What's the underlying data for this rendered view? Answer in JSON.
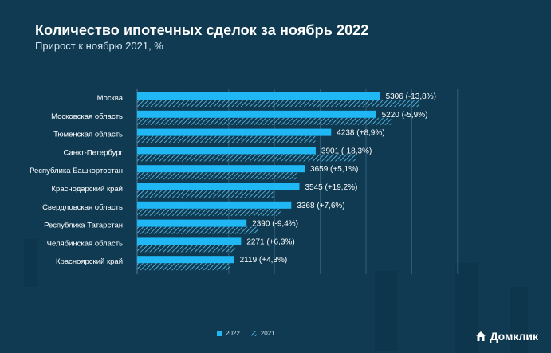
{
  "title": "Количество ипотечных сделок за ноябрь 2022",
  "subtitle": "Прирост к ноябрю 2021, %",
  "legend": {
    "current": "2022",
    "previous": "2021"
  },
  "brand": {
    "name": "Домклик"
  },
  "colors": {
    "bar_2022": "#1fb8f5",
    "bar_2021": "#5fc6f2",
    "background": "#0f3a52"
  },
  "chart_data": {
    "type": "bar",
    "orientation": "horizontal",
    "categories": [
      "Москва",
      "Московская область",
      "Тюменская область",
      "Санкт-Петербург",
      "Республика Башкортостан",
      "Краснодарский край",
      "Свердловская область",
      "Республика Татарстан",
      "Челябинская область",
      "Красноярский край"
    ],
    "series": [
      {
        "name": "2022",
        "values": [
          5306,
          5220,
          4238,
          3901,
          3659,
          3545,
          3368,
          2390,
          2271,
          2119
        ]
      },
      {
        "name": "2021",
        "values": [
          6155,
          5547,
          3892,
          4775,
          3481,
          2974,
          3130,
          2638,
          2136,
          2032
        ]
      }
    ],
    "data_labels": [
      "5306 (-13,8%)",
      "5220 (-5,9%)",
      "4238 (+8,9%)",
      "3901 (-18,3%)",
      "3659 (+5,1%)",
      "3545 (+19,2%)",
      "3368 (+7,6%)",
      "2390 (-9,4%)",
      "2271 (+6,3%)",
      "2119 (+4,3%)"
    ],
    "xlim": [
      0,
      7000
    ],
    "grid": true,
    "legend_position": "bottom-center"
  }
}
